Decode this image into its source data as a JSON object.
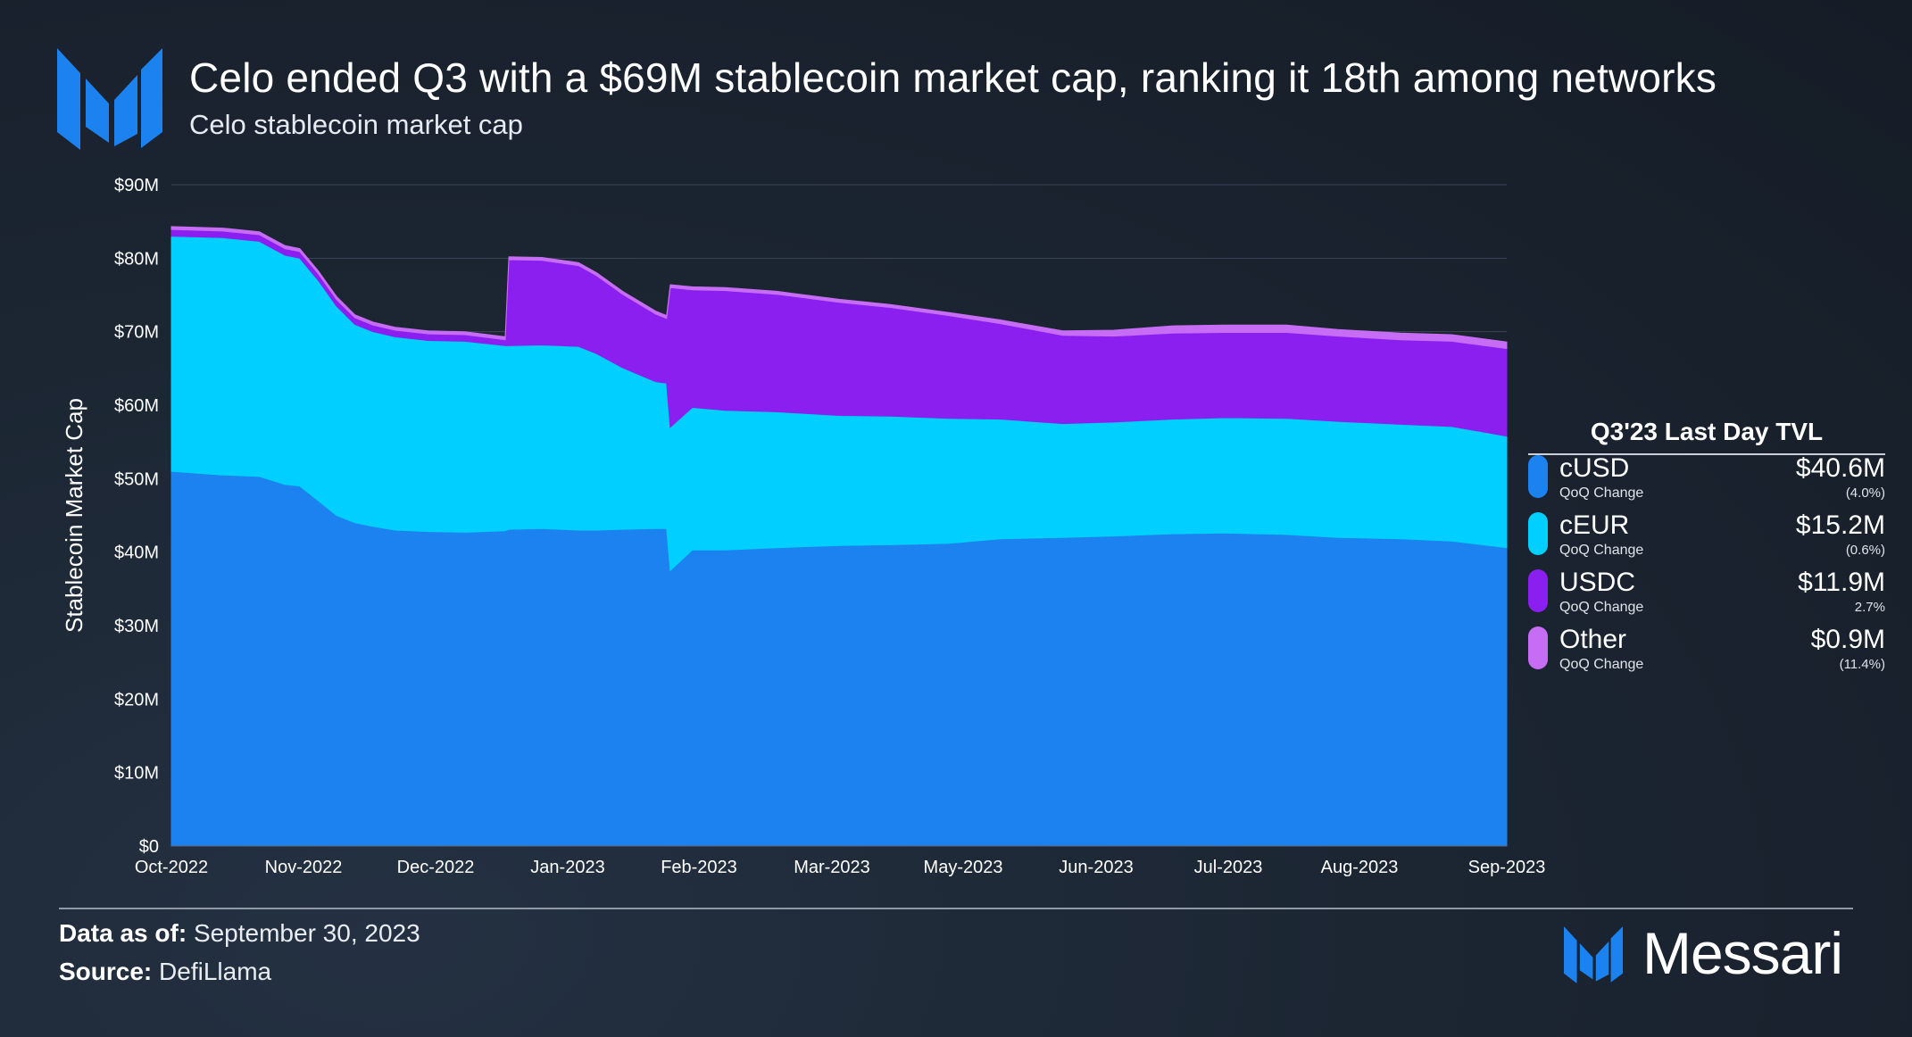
{
  "header": {
    "title": "Celo ended Q3 with a $69M stablecoin market cap, ranking it 18th among networks",
    "subtitle": "Celo stablecoin market cap"
  },
  "legend": {
    "title": "Q3'23 Last Day TVL",
    "items": [
      {
        "name": "cUSD",
        "sub": "QoQ Change",
        "value": "$40.6M",
        "change": "(4.0%)",
        "color": "#1b82f0"
      },
      {
        "name": "cEUR",
        "sub": "QoQ Change",
        "value": "$15.2M",
        "change": "(0.6%)",
        "color": "#00cfff"
      },
      {
        "name": "USDC",
        "sub": "QoQ Change",
        "value": "$11.9M",
        "change": "2.7%",
        "color": "#8a1ff0"
      },
      {
        "name": "Other",
        "sub": "QoQ Change",
        "value": "$0.9M",
        "change": "(11.4%)",
        "color": "#c76cf5"
      }
    ]
  },
  "footer": {
    "data_label": "Data as of:",
    "data_value": "September 30, 2023",
    "source_label": "Source:",
    "source_value": "DefiLlama"
  },
  "brand": {
    "name": "Messari",
    "icon": "messari-logo-icon",
    "color": "#1b82f0"
  },
  "chart_data": {
    "type": "area",
    "stacked": true,
    "title": "Celo stablecoin market cap",
    "ylabel": "Stablecoin Market Cap",
    "xlabel": "",
    "ylim": [
      0,
      90
    ],
    "yticks": [
      "$0",
      "$10M",
      "$20M",
      "$30M",
      "$40M",
      "$50M",
      "$60M",
      "$70M",
      "$80M",
      "$90M"
    ],
    "xticks": [
      "Oct-2022",
      "Nov-2022",
      "Dec-2022",
      "Jan-2023",
      "Feb-2023",
      "Mar-2023",
      "May-2023",
      "Jun-2023",
      "Jul-2023",
      "Aug-2023",
      "Sep-2023"
    ],
    "grid": "horizontal",
    "x": [
      "2022-10-01",
      "2022-10-15",
      "2022-10-25",
      "2022-11-01",
      "2022-11-05",
      "2022-11-10",
      "2022-11-15",
      "2022-11-20",
      "2022-11-25",
      "2022-12-01",
      "2022-12-10",
      "2022-12-20",
      "2022-12-31",
      "2023-01-01",
      "2023-01-10",
      "2023-01-20",
      "2023-01-25",
      "2023-02-01",
      "2023-02-10",
      "2023-02-13",
      "2023-02-14",
      "2023-02-20",
      "2023-03-01",
      "2023-03-15",
      "2023-04-01",
      "2023-04-15",
      "2023-05-01",
      "2023-05-15",
      "2023-06-01",
      "2023-06-15",
      "2023-07-01",
      "2023-07-15",
      "2023-08-01",
      "2023-08-15",
      "2023-09-01",
      "2023-09-15",
      "2023-09-30"
    ],
    "series": [
      {
        "name": "cUSD",
        "color": "#1b82f0",
        "values": [
          51.0,
          50.5,
          50.3,
          49.2,
          49.0,
          47.0,
          45.0,
          44.0,
          43.5,
          43.0,
          42.8,
          42.7,
          42.9,
          43.1,
          43.2,
          43.0,
          43.0,
          43.1,
          43.2,
          43.2,
          37.5,
          40.3,
          40.3,
          40.6,
          40.9,
          41.0,
          41.2,
          41.8,
          42.0,
          42.2,
          42.5,
          42.6,
          42.4,
          42.0,
          41.8,
          41.5,
          40.6
        ]
      },
      {
        "name": "cEUR",
        "color": "#00cfff",
        "values": [
          32.0,
          32.3,
          32.0,
          31.2,
          31.0,
          30.0,
          28.5,
          27.0,
          26.5,
          26.3,
          26.0,
          26.0,
          25.2,
          25.0,
          25.0,
          25.0,
          24.0,
          22.0,
          20.0,
          19.8,
          19.5,
          19.4,
          19.0,
          18.5,
          17.7,
          17.5,
          17.0,
          16.3,
          15.5,
          15.5,
          15.6,
          15.7,
          15.8,
          15.8,
          15.6,
          15.6,
          15.2
        ]
      },
      {
        "name": "USDC",
        "color": "#8a1ff0",
        "values": [
          0.9,
          0.9,
          0.9,
          0.9,
          0.9,
          0.9,
          0.9,
          0.9,
          0.9,
          0.9,
          0.9,
          0.9,
          0.8,
          11.7,
          11.5,
          11.0,
          10.6,
          10.0,
          9.2,
          8.8,
          19.0,
          16.0,
          16.3,
          16.0,
          15.4,
          14.8,
          14.0,
          13.0,
          12.0,
          11.7,
          11.7,
          11.6,
          11.7,
          11.6,
          11.5,
          11.6,
          11.9
        ]
      },
      {
        "name": "Other",
        "color": "#c76cf5",
        "values": [
          0.4,
          0.4,
          0.4,
          0.4,
          0.4,
          0.4,
          0.4,
          0.4,
          0.4,
          0.4,
          0.4,
          0.4,
          0.4,
          0.4,
          0.4,
          0.4,
          0.4,
          0.4,
          0.4,
          0.4,
          0.4,
          0.4,
          0.4,
          0.4,
          0.4,
          0.4,
          0.4,
          0.5,
          0.6,
          0.8,
          1.0,
          1.0,
          1.0,
          0.9,
          0.9,
          0.9,
          0.9
        ]
      }
    ],
    "legend_position": "right"
  }
}
